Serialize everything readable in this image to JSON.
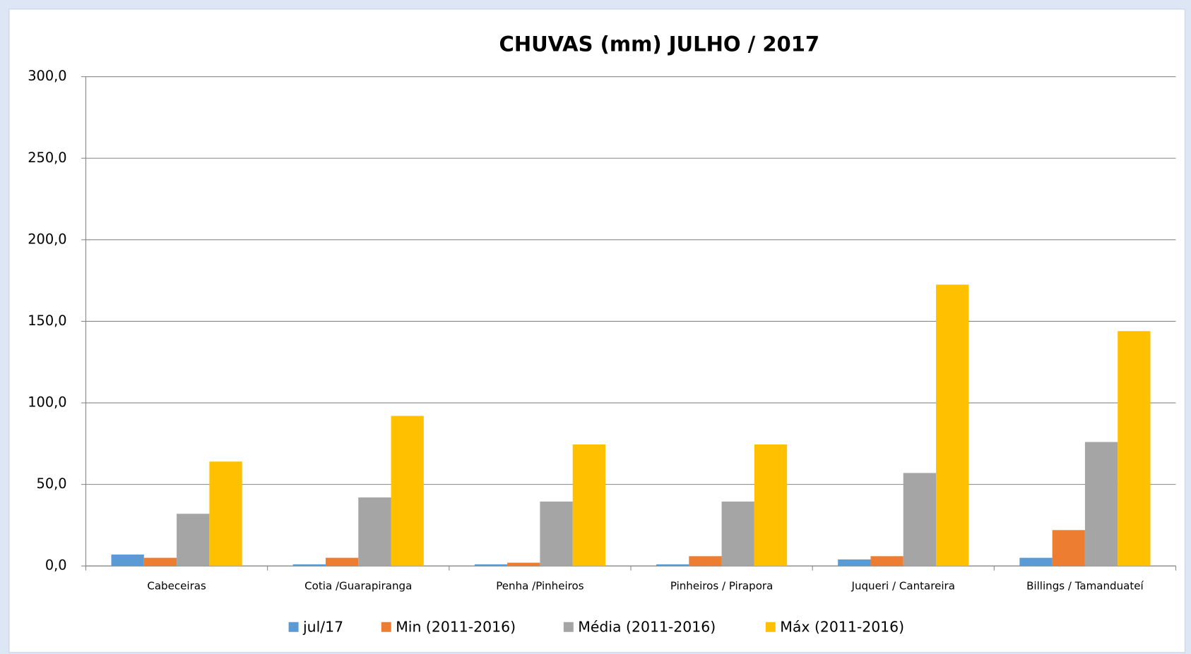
{
  "chart_data": {
    "type": "bar",
    "title": "CHUVAS (mm) JULHO / 2017",
    "categories": [
      "Cabeceiras",
      "Cotia /Guarapiranga",
      "Penha /Pinheiros",
      "Pinheiros / Pirapora",
      "Juqueri / Cantareira",
      "Billings / Tamanduateí"
    ],
    "series": [
      {
        "name": "jul/17",
        "color": "#5b9bd5",
        "values": [
          7,
          1,
          1,
          1,
          4,
          5
        ]
      },
      {
        "name": "Min (2011-2016)",
        "color": "#ed7d31",
        "values": [
          5,
          5,
          2,
          6,
          6,
          22
        ]
      },
      {
        "name": "Média (2011-2016)",
        "color": "#a5a5a5",
        "values": [
          32,
          42,
          39.5,
          39.5,
          57,
          76
        ]
      },
      {
        "name": "Máx  (2011-2016)",
        "color": "#ffc000",
        "values": [
          64,
          92,
          74.5,
          74.5,
          172.5,
          144
        ]
      }
    ],
    "ylim": [
      0,
      300
    ],
    "yticks": [
      {
        "value": 0,
        "label": "0,0"
      },
      {
        "value": 50,
        "label": "50,0"
      },
      {
        "value": 100,
        "label": "100,0"
      },
      {
        "value": 150,
        "label": "150,0"
      },
      {
        "value": 200,
        "label": "200,0"
      },
      {
        "value": 250,
        "label": "250,0"
      },
      {
        "value": 300,
        "label": "300,0"
      }
    ],
    "grid": true,
    "legend": "bottom"
  }
}
